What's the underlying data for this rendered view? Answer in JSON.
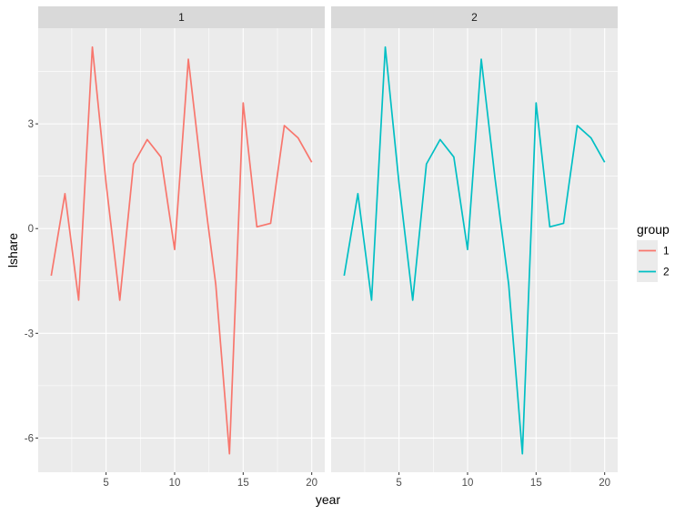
{
  "chart_data": {
    "type": "line",
    "facet_variable": "group",
    "panels": [
      {
        "strip": "1",
        "series": "1"
      },
      {
        "strip": "2",
        "series": "2"
      }
    ],
    "x": [
      1,
      2,
      3,
      4,
      5,
      6,
      7,
      8,
      9,
      10,
      11,
      12,
      13,
      14,
      15,
      16,
      17,
      18,
      19,
      20
    ],
    "series": [
      {
        "name": "1",
        "color": "#F8766D",
        "values": [
          -1.35,
          1.0,
          -2.05,
          5.2,
          1.3,
          -2.05,
          1.85,
          2.55,
          2.05,
          -0.6,
          4.85,
          1.45,
          -1.6,
          -6.45,
          3.6,
          0.05,
          0.15,
          2.95,
          2.6,
          1.9
        ]
      },
      {
        "name": "2",
        "color": "#00BFC4",
        "values": [
          -1.35,
          1.0,
          -2.05,
          5.2,
          1.3,
          -2.05,
          1.85,
          2.55,
          2.05,
          -0.6,
          4.85,
          1.45,
          -1.6,
          -6.45,
          3.6,
          0.05,
          0.15,
          2.95,
          2.6,
          1.9
        ]
      }
    ],
    "xlabel": "year",
    "ylabel": "lshare",
    "xlim": [
      0.05,
      20.95
    ],
    "ylim": [
      -6.98,
      5.74
    ],
    "xticks": [
      5,
      10,
      15,
      20
    ],
    "yticks": [
      -6,
      -3,
      0,
      3
    ],
    "xtick_labels": [
      "5",
      "10",
      "15",
      "20"
    ],
    "ytick_labels": [
      "-6",
      "-3",
      "0",
      "3"
    ],
    "grid": true,
    "legend": {
      "title": "group",
      "position": "right",
      "entries": [
        {
          "label": "1",
          "color": "#F8766D"
        },
        {
          "label": "2",
          "color": "#00BFC4"
        }
      ]
    }
  }
}
